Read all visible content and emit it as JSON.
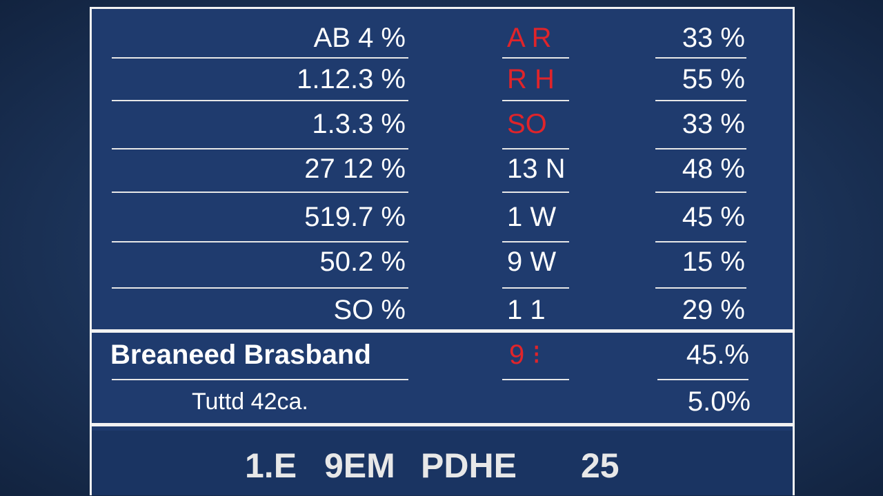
{
  "table": {
    "rows": [
      [
        "AB 4 %",
        "A R",
        "33 %"
      ],
      [
        "1.12.3 %",
        "R H",
        "55 %"
      ],
      [
        "1.3.3 %",
        "SO",
        "33 %"
      ],
      [
        "27 12 %",
        "13 N",
        "48 %"
      ],
      [
        "519.7 %",
        "1 W",
        "45 %"
      ],
      [
        "50.2 %",
        "9 W",
        "15 %"
      ],
      [
        "SO %",
        "1 1",
        "29 %"
      ]
    ],
    "summary": [
      [
        "Breaneed Brasband",
        "9 ⁝",
        "45.%"
      ],
      [
        "Tuttd 42ca.",
        "5.0%"
      ]
    ],
    "footer": [
      "1.E",
      "9EM",
      "PDHE",
      "25"
    ]
  }
}
